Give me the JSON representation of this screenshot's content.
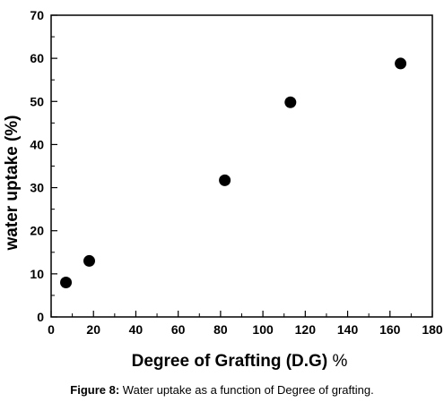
{
  "chart_data": {
    "type": "scatter",
    "title": "",
    "xlabel_main": "Degree of Grafting (D.G)",
    "xlabel_unit": "%",
    "ylabel": "water uptake (%)",
    "xlim": [
      0,
      180
    ],
    "ylim": [
      0,
      70
    ],
    "xticks": [
      0,
      20,
      40,
      60,
      80,
      100,
      120,
      140,
      160,
      180
    ],
    "yticks": [
      0,
      10,
      20,
      30,
      40,
      50,
      60,
      70
    ],
    "grid": false,
    "legend": "none",
    "marker_color": "#000000",
    "series": [
      {
        "x": [
          7,
          18,
          82,
          113,
          165
        ],
        "y": [
          8,
          13,
          31.7,
          49.8,
          58.8
        ]
      }
    ]
  },
  "caption": {
    "lead": "Figure 8:",
    "text": " Water uptake as a function of Degree of grafting."
  }
}
